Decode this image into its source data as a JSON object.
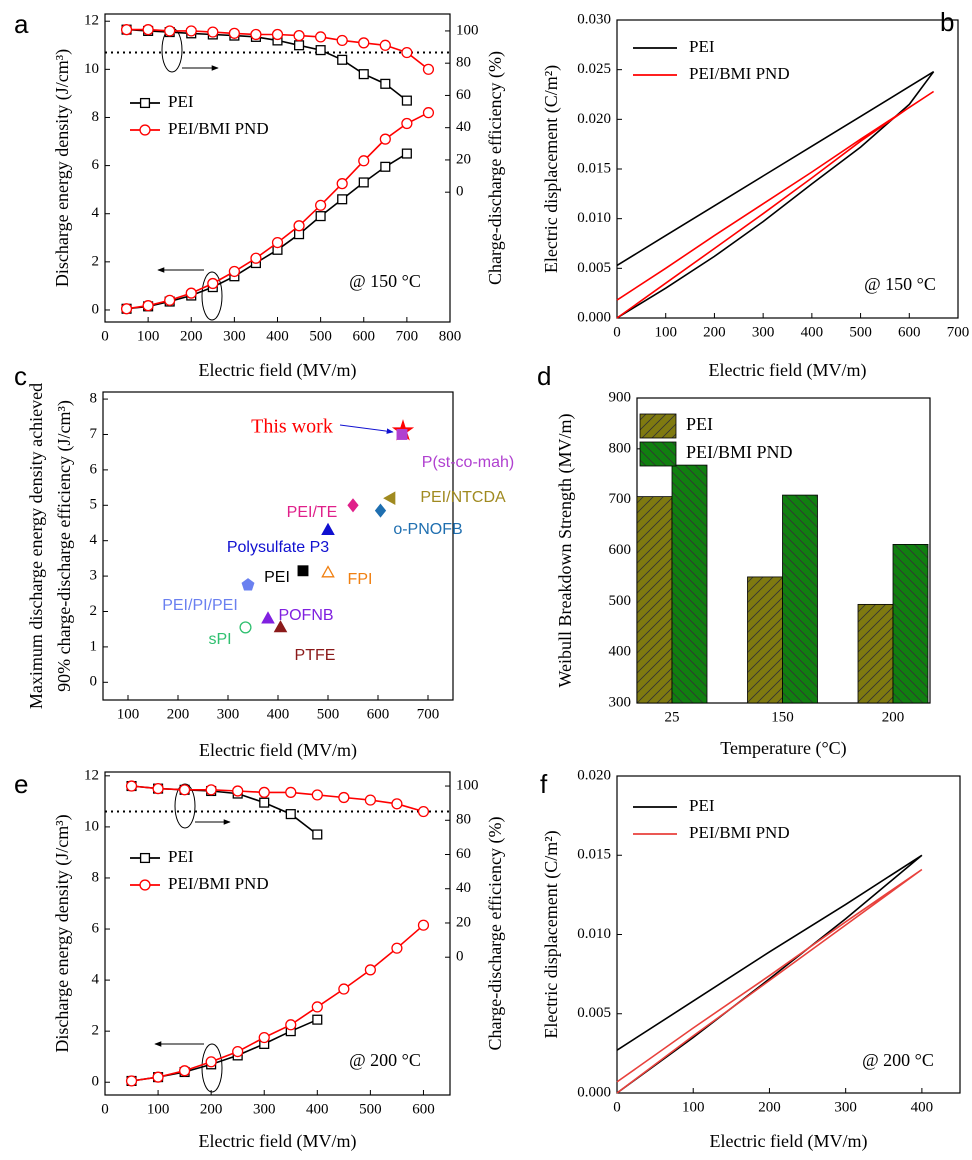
{
  "chart_data": [
    {
      "panel": "a",
      "type": "line",
      "xlabel": "Electric field (MV/m)",
      "ylabel": "Discharge energy density (J/cm³)",
      "y2label": "Charge-discharge efficiency (%)",
      "annotation": "@ 150 °C",
      "xlim": [
        0,
        800
      ],
      "xticks": [
        0,
        100,
        200,
        300,
        400,
        500,
        600,
        700,
        800
      ],
      "ylim": [
        -0.5,
        12.3
      ],
      "yticks": [
        0,
        2,
        4,
        6,
        8,
        10,
        12
      ],
      "y2lim": [
        -80.5,
        110.5
      ],
      "y2ticks": [
        0,
        20,
        40,
        60,
        80,
        100
      ],
      "reference_line": {
        "value": 86.6,
        "axis": "y2"
      },
      "legend": "upper left",
      "series": [
        {
          "name": "PEI",
          "color": "#000000",
          "marker": "square",
          "x": [
            50,
            100,
            150,
            200,
            250,
            300,
            350,
            400,
            450,
            500,
            550,
            600,
            650,
            700
          ],
          "values": [
            0.05,
            0.15,
            0.35,
            0.6,
            0.95,
            1.4,
            1.95,
            2.5,
            3.15,
            3.9,
            4.6,
            5.3,
            5.95,
            6.5
          ]
        },
        {
          "name": "PEI/BMI PND",
          "color": "#ff0000",
          "marker": "circle",
          "x": [
            50,
            100,
            150,
            200,
            250,
            300,
            350,
            400,
            450,
            500,
            550,
            600,
            650,
            700,
            750
          ],
          "values": [
            0.05,
            0.18,
            0.4,
            0.7,
            1.1,
            1.6,
            2.15,
            2.8,
            3.5,
            4.35,
            5.25,
            6.2,
            7.1,
            7.75,
            8.2
          ]
        },
        {
          "color": "#000000",
          "marker": "square",
          "axis": "y2",
          "x": [
            50,
            100,
            150,
            200,
            250,
            300,
            350,
            400,
            450,
            500,
            550,
            600,
            650,
            700
          ],
          "values": [
            100.8,
            100.0,
            99.3,
            98.5,
            97.8,
            97.1,
            96.3,
            94.1,
            91.1,
            88.1,
            82.1,
            73.2,
            67.2,
            56.8
          ]
        },
        {
          "color": "#ff0000",
          "marker": "circle",
          "axis": "y2",
          "x": [
            50,
            100,
            150,
            200,
            250,
            300,
            350,
            400,
            450,
            500,
            550,
            600,
            650,
            700,
            750
          ],
          "values": [
            100.8,
            100.8,
            100.0,
            100.0,
            99.3,
            98.5,
            97.8,
            97.8,
            97.1,
            96.3,
            94.1,
            92.6,
            91.1,
            86.6,
            76.2
          ]
        }
      ]
    },
    {
      "panel": "b",
      "type": "line",
      "xlabel": "Electric field (MV/m)",
      "ylabel": "Electric displacement (C/m²)",
      "annotation": "@ 150 °C",
      "xlim": [
        0,
        700
      ],
      "xticks": [
        0,
        100,
        200,
        300,
        400,
        500,
        600,
        700
      ],
      "ylim": [
        0,
        0.03
      ],
      "yticks": [
        {
          "value": 0,
          "label": "0.000"
        },
        {
          "value": 0.005,
          "label": "0.005"
        },
        {
          "value": 0.01,
          "label": "0.010"
        },
        {
          "value": 0.015,
          "label": "0.015"
        },
        {
          "value": 0.02,
          "label": "0.020"
        },
        {
          "value": 0.025,
          "label": "0.025"
        },
        {
          "value": 0.03,
          "label": "0.030"
        }
      ],
      "legend": "upper left",
      "series": [
        {
          "name": "PEI",
          "color": "#000000",
          "x": [
            0,
            100,
            200,
            300,
            400,
            500,
            600,
            650,
            600,
            500,
            400,
            300,
            200,
            100,
            0
          ],
          "values": [
            0,
            0.003,
            0.0062,
            0.0097,
            0.0135,
            0.0172,
            0.0215,
            0.0248,
            0.0233,
            0.0203,
            0.0173,
            0.0143,
            0.0113,
            0.0083,
            0.0053
          ]
        },
        {
          "name": "PEI/BMI PND",
          "color": "#ff0000",
          "x": [
            0,
            100,
            200,
            300,
            400,
            500,
            600,
            650,
            600,
            500,
            400,
            300,
            200,
            100,
            0
          ],
          "values": [
            0,
            0.0035,
            0.007,
            0.0105,
            0.0141,
            0.0178,
            0.0212,
            0.0228,
            0.0212,
            0.018,
            0.0147,
            0.0115,
            0.0083,
            0.005,
            0.0018
          ]
        }
      ]
    },
    {
      "panel": "c",
      "type": "scatter",
      "xlabel": "Electric field (MV/m)",
      "ylabel": [
        "Maximum discharge energy density achieved",
        "90% charge-discharge efficiency (J/cm³)"
      ],
      "xlim": [
        50,
        750
      ],
      "xticks": [
        100,
        200,
        300,
        400,
        500,
        600,
        700
      ],
      "ylim": [
        -0.5,
        8.2
      ],
      "yticks": [
        0,
        1,
        2,
        3,
        4,
        5,
        6,
        7,
        8
      ],
      "points": [
        {
          "label": "This work",
          "x": 650,
          "y": 7.1,
          "color": "#ff0000",
          "marker": "star",
          "filled": true
        },
        {
          "label": "P(st-co-mah)",
          "x": 648,
          "y": 7.0,
          "color": "#b040d0",
          "marker": "square",
          "filled": true
        },
        {
          "label": "PEI/NTCDA",
          "x": 625,
          "y": 5.2,
          "color": "#a08a20",
          "marker": "triangle-left",
          "filled": true
        },
        {
          "label": "PEI/TE",
          "x": 550,
          "y": 5.0,
          "color": "#e0208a",
          "marker": "diamond",
          "filled": true
        },
        {
          "label": "o-PNOFB",
          "x": 605,
          "y": 4.85,
          "color": "#1f6fb0",
          "marker": "diamond",
          "filled": true
        },
        {
          "label": "Polysulfate P3",
          "x": 500,
          "y": 4.3,
          "color": "#1010d0",
          "marker": "triangle-up",
          "filled": true
        },
        {
          "label": "PEI",
          "x": 450,
          "y": 3.15,
          "color": "#000000",
          "marker": "square",
          "filled": true
        },
        {
          "label": "FPI",
          "x": 500,
          "y": 3.1,
          "color": "#f07f10",
          "marker": "triangle-up",
          "filled": false
        },
        {
          "label": "PEI/PI/PEI",
          "x": 340,
          "y": 2.75,
          "color": "#6a80f0",
          "marker": "pentagon",
          "filled": true
        },
        {
          "label": "POFNB",
          "x": 380,
          "y": 1.8,
          "color": "#8020e0",
          "marker": "triangle-up",
          "filled": true
        },
        {
          "label": "sPI",
          "x": 335,
          "y": 1.55,
          "color": "#30c070",
          "marker": "circle",
          "filled": false
        },
        {
          "label": "PTFE",
          "x": 405,
          "y": 1.55,
          "color": "#8b1a1a",
          "marker": "triangle-up",
          "filled": true
        }
      ]
    },
    {
      "panel": "d",
      "type": "bar",
      "xlabel": "Temperature (°C)",
      "ylabel": "Weibull Breakdown Strength (MV/m)",
      "categories": [
        "25",
        "150",
        "200"
      ],
      "ylim": [
        300,
        900
      ],
      "yticks": [
        300,
        400,
        500,
        600,
        700,
        800,
        900
      ],
      "legend": "upper left",
      "series": [
        {
          "name": "PEI",
          "color": "#7f7a10",
          "values": [
            706,
            548,
            494
          ]
        },
        {
          "name": "PEI/BMI PND",
          "color": "#108010",
          "values": [
            768,
            709,
            612
          ]
        }
      ]
    },
    {
      "panel": "e",
      "type": "line",
      "xlabel": "Electric field (MV/m)",
      "ylabel": "Discharge energy density (J/cm³)",
      "y2label": "Charge-discharge efficiency (%)",
      "annotation": "@ 200 °C",
      "xlim": [
        0,
        650
      ],
      "xticks": [
        0,
        100,
        200,
        300,
        400,
        500,
        600
      ],
      "ylim": [
        -0.5,
        12.15
      ],
      "yticks": [
        0,
        2,
        4,
        6,
        8,
        10,
        12
      ],
      "y2lim": [
        -80.5,
        108.2
      ],
      "y2ticks": [
        0,
        20,
        40,
        60,
        80,
        100
      ],
      "reference_line": {
        "value": 85.1,
        "axis": "y2"
      },
      "legend": "upper left",
      "series": [
        {
          "name": "PEI",
          "color": "#000000",
          "marker": "square",
          "x": [
            50,
            100,
            150,
            200,
            250,
            300,
            350,
            400
          ],
          "values": [
            0.05,
            0.2,
            0.4,
            0.7,
            1.05,
            1.5,
            2.0,
            2.45
          ]
        },
        {
          "name": "PEI/BMI PND",
          "color": "#ff0000",
          "marker": "circle",
          "x": [
            50,
            100,
            150,
            200,
            250,
            300,
            350,
            400,
            450,
            500,
            550,
            600
          ],
          "values": [
            0.05,
            0.2,
            0.45,
            0.8,
            1.2,
            1.75,
            2.25,
            2.95,
            3.65,
            4.4,
            5.25,
            6.15
          ]
        },
        {
          "color": "#000000",
          "marker": "square",
          "axis": "y2",
          "x": [
            50,
            100,
            150,
            200,
            250,
            300,
            350,
            400
          ],
          "values": [
            100.0,
            98.5,
            97.8,
            97.1,
            95.6,
            90.3,
            83.6,
            71.7
          ]
        },
        {
          "color": "#ff0000",
          "marker": "circle",
          "axis": "y2",
          "x": [
            50,
            100,
            150,
            200,
            250,
            300,
            350,
            400,
            450,
            500,
            550,
            600
          ],
          "values": [
            100.0,
            98.5,
            97.8,
            97.8,
            97.1,
            96.3,
            96.3,
            94.8,
            93.3,
            91.8,
            89.6,
            85.1
          ]
        }
      ]
    },
    {
      "panel": "f",
      "type": "line",
      "xlabel": "Electric field (MV/m)",
      "ylabel": "Electric displacement (C/m²)",
      "annotation": "@  200 °C",
      "xlim": [
        0,
        450
      ],
      "xticks": [
        0,
        100,
        200,
        300,
        400
      ],
      "ylim": [
        0,
        0.02
      ],
      "yticks": [
        {
          "value": 0,
          "label": "0.000"
        },
        {
          "value": 0.005,
          "label": "0.005"
        },
        {
          "value": 0.01,
          "label": "0.010"
        },
        {
          "value": 0.015,
          "label": "0.015"
        },
        {
          "value": 0.02,
          "label": "0.020"
        }
      ],
      "legend": "upper left",
      "series": [
        {
          "name": "PEI",
          "color": "#000000",
          "x": [
            0,
            100,
            200,
            300,
            400,
            300,
            200,
            100,
            0
          ],
          "values": [
            0,
            0.0035,
            0.0072,
            0.011,
            0.015,
            0.0119,
            0.0089,
            0.0058,
            0.0027
          ]
        },
        {
          "name": "PEI/BMI PND",
          "color": "#e8413c",
          "x": [
            0,
            100,
            200,
            300,
            400,
            300,
            200,
            100,
            0
          ],
          "values": [
            0,
            0.0036,
            0.0071,
            0.0106,
            0.0141,
            0.0108,
            0.0074,
            0.0041,
            0.0007
          ]
        }
      ]
    }
  ]
}
